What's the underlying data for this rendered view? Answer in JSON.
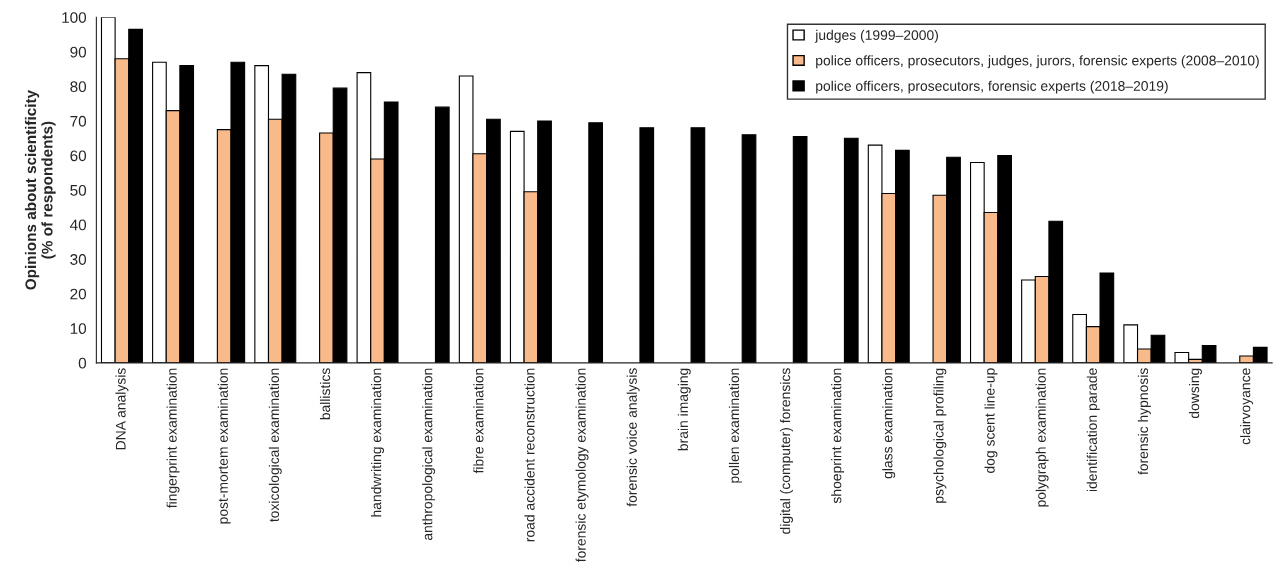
{
  "chart_data": {
    "type": "bar",
    "ylabel": "Opinions about scientificity\n(% of respondents)",
    "categories": [
      "DNA analysis",
      "fingerprint examination",
      "post-mortem examination",
      "toxicological examination",
      "ballistics",
      "handwriting examination",
      "anthropological examination",
      "fibre examination",
      "road accident reconstruction",
      "forensic etymology examination",
      "forensic voice analysis",
      "brain imaging",
      "pollen examination",
      "digital (computer) forensics",
      "shoeprint examination",
      "glass examination",
      "psychological profiling",
      "dog scent line-up",
      "polygraph examination",
      "identification parade",
      "forensic hypnosis",
      "dowsing",
      "clairvoyance"
    ],
    "series": [
      {
        "name": "judges (1999–2000)",
        "color": "#ffffff",
        "values": [
          100,
          87,
          null,
          86,
          null,
          84,
          null,
          83,
          67,
          null,
          null,
          null,
          null,
          null,
          null,
          63,
          null,
          58,
          24,
          14,
          11,
          3,
          null
        ]
      },
      {
        "name": "police officers, prosecutors, judges, jurors, forensic experts (2008–2010)",
        "color": "#f8b98b",
        "values": [
          88,
          73,
          67.5,
          70.5,
          66.5,
          59,
          null,
          60.5,
          49.5,
          null,
          null,
          null,
          null,
          null,
          null,
          49,
          48.5,
          43.5,
          25,
          10.5,
          4,
          1,
          2
        ]
      },
      {
        "name": "police officers, prosecutors, forensic experts (2018–2019)",
        "color": "#000000",
        "values": [
          96.5,
          86,
          87,
          83.5,
          79.5,
          75.5,
          74,
          70.5,
          70,
          69.5,
          68,
          68,
          66,
          65.5,
          65,
          61.5,
          59.5,
          60,
          41,
          26,
          8,
          5,
          4.5
        ]
      }
    ],
    "ylim": [
      0,
      100
    ],
    "yticks": [
      0,
      10,
      20,
      30,
      40,
      50,
      60,
      70,
      80,
      90,
      100
    ],
    "grid": false,
    "legend": "top right"
  }
}
